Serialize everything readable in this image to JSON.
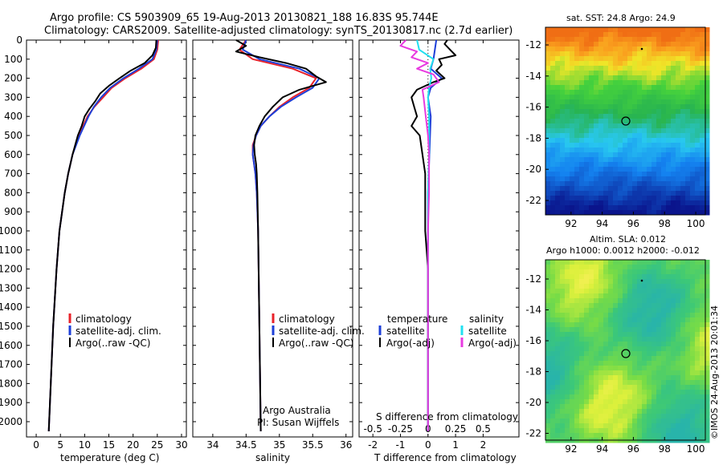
{
  "header": {
    "line1": "Argo profile: CS 5903909_65 19-Aug-2013 20130821_188 16.83S 95.744E",
    "line2": "Climatology: CARS2009. Satellite-adjusted climatology: synTS_20130817.nc (2.7d earlier)"
  },
  "colors": {
    "climatology": "#e8222a",
    "satellite": "#1d3fd8",
    "argo": "#000000",
    "sat_salinity": "#22e0f0",
    "argo_salinity": "#e83ae0"
  },
  "chart_data": [
    {
      "type": "line",
      "name": "temperature-profile",
      "xlabel": "temperature (deg C)",
      "ylabel": "",
      "xlim": [
        -2,
        31
      ],
      "ylim": [
        2080,
        0
      ],
      "xticks": [
        0,
        5,
        10,
        15,
        20,
        25,
        30
      ],
      "yticks": [
        0,
        100,
        200,
        300,
        400,
        500,
        600,
        700,
        800,
        900,
        1000,
        1100,
        1200,
        1300,
        1400,
        1500,
        1600,
        1700,
        1800,
        1900,
        2000
      ],
      "legend": [
        "climatology",
        "satellite-adj. clim.",
        "Argo(..raw -QC)"
      ],
      "series": [
        {
          "name": "climatology",
          "depth": [
            0,
            50,
            100,
            150,
            200,
            250,
            300,
            350,
            400,
            500,
            600,
            700,
            800,
            1000,
            1200,
            1500,
            1800,
            2050
          ],
          "values": [
            25.2,
            25.0,
            24.3,
            21.7,
            18.4,
            15.6,
            13.8,
            12.0,
            10.6,
            8.8,
            7.5,
            6.6,
            5.9,
            4.8,
            4.2,
            3.5,
            3.0,
            2.6
          ]
        },
        {
          "name": "satellite-adj. clim.",
          "depth": [
            0,
            50,
            100,
            150,
            200,
            250,
            300,
            350,
            400,
            500,
            600,
            700,
            800,
            1000,
            1200,
            1500,
            1800,
            2050
          ],
          "values": [
            25.0,
            24.8,
            24.0,
            21.2,
            18.0,
            15.3,
            13.4,
            11.9,
            10.8,
            9.0,
            7.5,
            6.6,
            5.9,
            4.8,
            4.2,
            3.5,
            3.0,
            2.6
          ]
        },
        {
          "name": "Argo",
          "depth": [
            0,
            40,
            80,
            120,
            160,
            200,
            240,
            280,
            320,
            360,
            400,
            450,
            500,
            600,
            700,
            800,
            1000,
            1200,
            1500,
            1800,
            2050
          ],
          "values": [
            24.8,
            24.7,
            24.0,
            22.4,
            19.5,
            17.2,
            15.0,
            13.2,
            12.2,
            11.0,
            10.0,
            9.4,
            8.6,
            7.5,
            6.6,
            5.9,
            4.8,
            4.2,
            3.5,
            3.0,
            2.6
          ]
        }
      ]
    },
    {
      "type": "line",
      "name": "salinity-profile",
      "xlabel": "salinity",
      "xlim": [
        33.7,
        36.1
      ],
      "ylim": [
        2080,
        0
      ],
      "xticks": [
        34,
        34.5,
        35,
        35.5,
        36
      ],
      "xticklabels": [
        "34",
        "34.5",
        "35",
        "35.5",
        "36"
      ],
      "legend": [
        "climatology",
        "satellite-adj. clim.",
        "Argo(..raw -QC)"
      ],
      "annotation": [
        "Argo Australia",
        "PI: Susan Wijffels"
      ],
      "series": [
        {
          "name": "climatology",
          "depth": [
            0,
            50,
            100,
            150,
            200,
            250,
            300,
            350,
            400,
            450,
            500,
            550,
            600,
            650,
            700,
            800,
            1000,
            1500,
            2050
          ],
          "values": [
            34.5,
            34.4,
            34.6,
            35.2,
            35.55,
            35.45,
            35.2,
            35.0,
            34.85,
            34.72,
            34.65,
            34.6,
            34.6,
            34.62,
            34.64,
            34.66,
            34.68,
            34.7,
            34.72
          ]
        },
        {
          "name": "satellite-adj. clim.",
          "depth": [
            0,
            50,
            100,
            150,
            200,
            250,
            300,
            350,
            400,
            450,
            500,
            550,
            600,
            650,
            700,
            800,
            1000,
            1500,
            2050
          ],
          "values": [
            34.5,
            34.45,
            34.7,
            35.3,
            35.6,
            35.5,
            35.25,
            35.02,
            34.85,
            34.72,
            34.65,
            34.61,
            34.6,
            34.62,
            34.64,
            34.66,
            34.68,
            34.7,
            34.72
          ]
        },
        {
          "name": "Argo",
          "depth": [
            0,
            30,
            60,
            90,
            120,
            150,
            190,
            220,
            260,
            300,
            350,
            400,
            450,
            500,
            550,
            600,
            650,
            700,
            800,
            1000,
            1500,
            2050
          ],
          "values": [
            34.35,
            34.5,
            34.35,
            34.7,
            35.1,
            35.4,
            35.55,
            35.7,
            35.3,
            35.05,
            34.9,
            34.78,
            34.7,
            34.64,
            34.62,
            34.63,
            34.65,
            34.66,
            34.67,
            34.68,
            34.7,
            34.72
          ]
        }
      ]
    },
    {
      "type": "line",
      "name": "difference-profile",
      "xlabel": "T difference from climatology",
      "xlabel_top": "S difference from climatology",
      "xlim": [
        -2.5,
        3.3
      ],
      "ylim": [
        2080,
        0
      ],
      "xticks": [
        -2,
        -1,
        0,
        1,
        2
      ],
      "xticklabels": [
        "-2",
        "-1",
        "0",
        "1",
        "2"
      ],
      "xticks_top": [
        -0.5,
        -0.25,
        0,
        0.25,
        0.5
      ],
      "xticklabels_top": [
        "-0.5",
        "-0.25",
        "0",
        "0.25",
        "0.5"
      ],
      "legend_left": {
        "title": "temperature",
        "items": [
          "satellite",
          "Argo(-adj)"
        ]
      },
      "legend_right": {
        "title": "salinity",
        "items": [
          "satellite",
          "Argo(-adj)"
        ]
      },
      "series": [
        {
          "name": "T satellite",
          "depth": [
            0,
            100,
            150,
            200,
            250,
            300,
            400,
            600,
            800,
            1000,
            1500,
            2050
          ],
          "values": [
            0.3,
            0.2,
            0.1,
            0.5,
            0.1,
            0.0,
            0.1,
            0.05,
            0.0,
            0.0,
            0.0,
            0.0
          ]
        },
        {
          "name": "T Argo",
          "depth": [
            0,
            20,
            50,
            80,
            100,
            130,
            160,
            200,
            220,
            260,
            300,
            350,
            400,
            450,
            500,
            600,
            700,
            800,
            1000,
            1200,
            1500,
            2050
          ],
          "values": [
            0.7,
            0.6,
            0.8,
            1.0,
            0.4,
            0.5,
            0.3,
            0.6,
            0.2,
            -0.4,
            -0.6,
            -0.5,
            -0.4,
            -0.6,
            -0.3,
            -0.2,
            -0.1,
            -0.1,
            -0.1,
            0.0,
            0.0,
            0.0
          ]
        },
        {
          "name": "S satellite",
          "depth": [
            0,
            50,
            100,
            150,
            200,
            250,
            300,
            400,
            600,
            800,
            1000,
            1500,
            2050
          ],
          "values": [
            -0.1,
            -0.08,
            0.05,
            0.02,
            0.03,
            0.01,
            0.0,
            0.01,
            0.01,
            0.0,
            0.0,
            0.0,
            0.0
          ]
        },
        {
          "name": "S Argo",
          "depth": [
            0,
            30,
            60,
            90,
            120,
            150,
            180,
            220,
            260,
            300,
            400,
            500,
            600,
            800,
            1000,
            1500,
            2050
          ],
          "values": [
            -0.2,
            -0.25,
            -0.1,
            -0.15,
            0.0,
            -0.1,
            0.05,
            0.1,
            -0.05,
            -0.04,
            -0.02,
            0.0,
            0.01,
            0.01,
            0.0,
            0.0,
            0.0
          ]
        }
      ]
    }
  ],
  "sst_map": {
    "title": "sat. SST: 24.8 Argo: 24.9",
    "xticklabels": [
      "92",
      "94",
      "96",
      "98",
      "100"
    ],
    "yticklabels": [
      "-12",
      "-14",
      "-16",
      "-18",
      "-20",
      "-22"
    ]
  },
  "sla_map": {
    "title1": "Altim. SLA: 0.012",
    "title2": "Argo h1000: 0.0012 h2000: -0.012",
    "xticklabels": [
      "92",
      "94",
      "96",
      "98",
      "100"
    ],
    "yticklabels": [
      "-12",
      "-14",
      "-16",
      "-18",
      "-20",
      "-22"
    ]
  },
  "footer": {
    "credit": "©IMOS 24-Aug-2013 20:01:34"
  }
}
